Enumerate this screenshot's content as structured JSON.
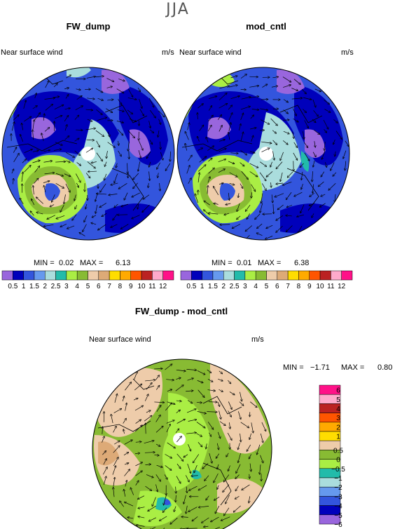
{
  "season": "JJA",
  "panels": [
    {
      "title": "FW_dump",
      "subtitle_left": "Near surface wind",
      "subtitle_right": "m/s",
      "min_label": "MIN =",
      "min": "0.02",
      "max_label": "MAX =",
      "max": "6.13",
      "colorbar": [
        "0.5",
        "1",
        "1.5",
        "2",
        "2.5",
        "3",
        "4",
        "5",
        "6",
        "7",
        "8",
        "9",
        "10",
        "11",
        "12"
      ]
    },
    {
      "title": "mod_cntl",
      "subtitle_left": "Near surface wind",
      "subtitle_right": "m/s",
      "min_label": "MIN =",
      "min": "0.01",
      "max_label": "MAX =",
      "max": "6.38",
      "colorbar": [
        "0.5",
        "1",
        "1.5",
        "2",
        "2.5",
        "3",
        "4",
        "5",
        "6",
        "7",
        "8",
        "9",
        "10",
        "11",
        "12"
      ]
    }
  ],
  "diff_panel": {
    "title": "FW_dump - mod_cntl",
    "subtitle_left": "Near surface wind",
    "subtitle_right": "m/s",
    "min_label": "MIN =",
    "min": "−1.71",
    "max_label": "MAX =",
    "max": "0.80",
    "colorbar": [
      "6",
      "5",
      "4",
      "3",
      "2",
      "1",
      "0.5",
      "0",
      "−0.5",
      "−1",
      "−2",
      "−3",
      "−4",
      "−5",
      "−6"
    ]
  },
  "colors": {
    "abs_palette": [
      "#9966dd",
      "#0000bb",
      "#3355dd",
      "#6699ee",
      "#aadddd",
      "#22bbaa",
      "#aaee44",
      "#88bb33",
      "#eeccaa",
      "#ddaa77",
      "#ffdd00",
      "#ffaa00",
      "#ff5500",
      "#bb2222",
      "#ffaacc",
      "#ff1188"
    ],
    "diff_palette": [
      "#ff1188",
      "#ffaacc",
      "#bb2222",
      "#ff5500",
      "#ffaa00",
      "#ffdd00",
      "#eeccaa",
      "#88bb33",
      "#aaee44",
      "#22bbaa",
      "#aadddd",
      "#6699ee",
      "#3355dd",
      "#0000bb",
      "#9966dd"
    ]
  },
  "chart_data": [
    {
      "type": "heatmap",
      "projection": "polar-stereographic",
      "title": "FW_dump",
      "field": "Near surface wind",
      "units": "m/s",
      "min": 0.02,
      "max": 6.13,
      "contour_levels": [
        0.5,
        1,
        1.5,
        2,
        2.5,
        3,
        4,
        5,
        6,
        7,
        8,
        9,
        10,
        11,
        12
      ]
    },
    {
      "type": "heatmap",
      "projection": "polar-stereographic",
      "title": "mod_cntl",
      "field": "Near surface wind",
      "units": "m/s",
      "min": 0.01,
      "max": 6.38,
      "contour_levels": [
        0.5,
        1,
        1.5,
        2,
        2.5,
        3,
        4,
        5,
        6,
        7,
        8,
        9,
        10,
        11,
        12
      ]
    },
    {
      "type": "heatmap",
      "projection": "polar-stereographic",
      "title": "FW_dump - mod_cntl",
      "field": "Near surface wind",
      "units": "m/s",
      "min": -1.71,
      "max": 0.8,
      "contour_levels": [
        -6,
        -5,
        -4,
        -3,
        -2,
        -1,
        -0.5,
        0,
        0.5,
        1,
        2,
        3,
        4,
        5,
        6
      ]
    }
  ]
}
